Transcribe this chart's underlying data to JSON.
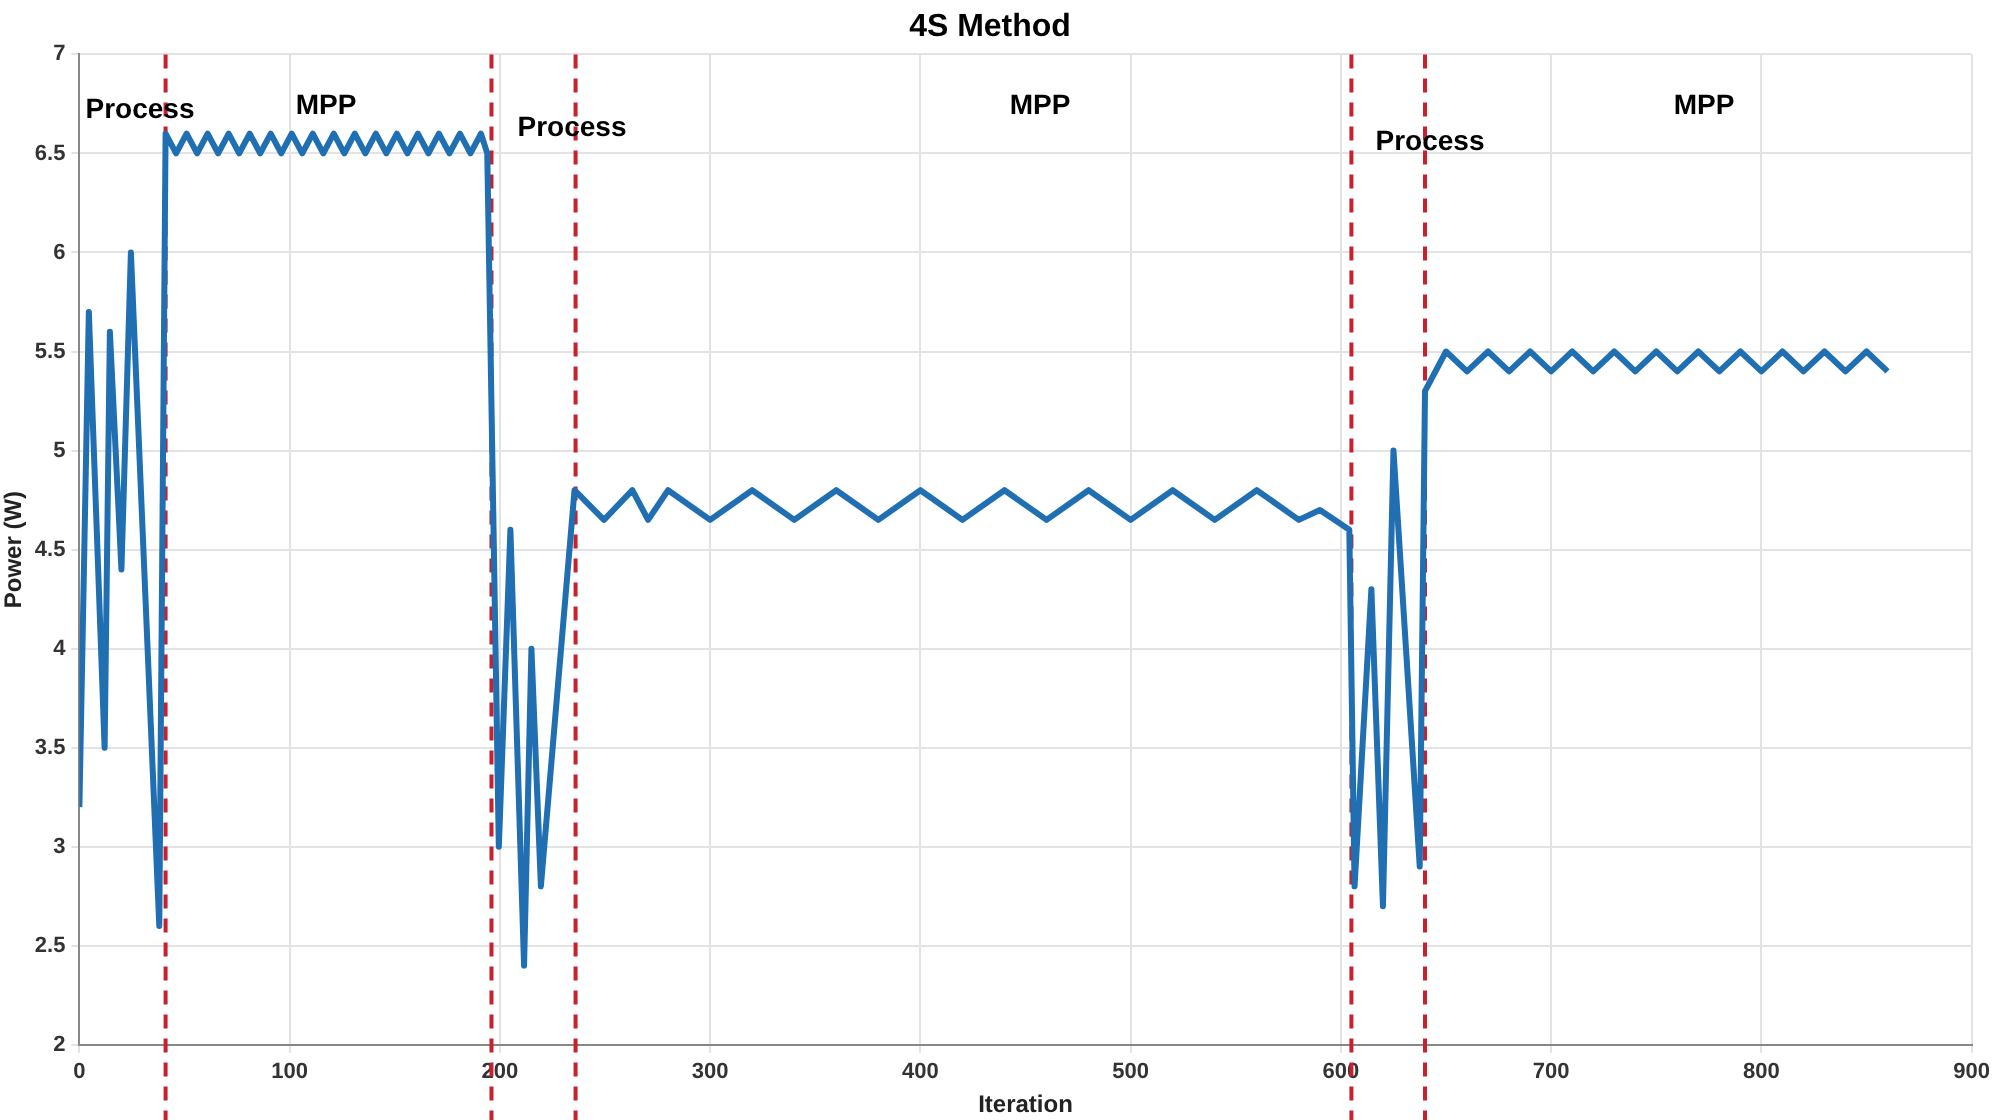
{
  "chart_data": {
    "type": "line",
    "title": "4S Method",
    "xlabel": "Iteration",
    "ylabel": "Power (W)",
    "x": [
      0,
      4.5,
      12,
      14.5,
      20,
      24.5,
      38,
      41,
      46,
      51,
      56,
      61,
      66,
      71,
      76,
      81,
      86,
      91,
      96,
      101,
      106,
      111,
      116,
      121,
      126,
      131,
      136,
      141,
      146,
      151,
      156,
      161,
      166,
      171,
      176,
      181,
      186,
      191,
      194,
      199.5,
      205,
      211.5,
      215,
      219.5,
      235.5,
      249.5,
      263,
      270.5,
      280,
      300,
      320,
      340,
      360,
      380,
      400,
      420,
      440,
      460,
      480,
      500,
      520,
      540,
      560,
      580,
      590,
      604,
      606.5,
      614.5,
      620,
      625,
      637.5,
      640,
      650,
      660,
      670,
      680,
      690,
      700,
      710,
      720,
      730,
      740,
      750,
      760,
      770,
      780,
      790,
      800,
      810,
      820,
      830,
      840,
      850,
      860
    ],
    "series": [
      {
        "color": "#1f6fb2",
        "values": [
          3.2,
          5.7,
          3.5,
          5.6,
          4.4,
          6.0,
          2.6,
          6.6,
          6.5,
          6.6,
          6.5,
          6.6,
          6.5,
          6.6,
          6.5,
          6.6,
          6.5,
          6.6,
          6.5,
          6.6,
          6.5,
          6.6,
          6.5,
          6.6,
          6.5,
          6.6,
          6.5,
          6.6,
          6.5,
          6.6,
          6.5,
          6.6,
          6.5,
          6.6,
          6.5,
          6.6,
          6.5,
          6.6,
          6.5,
          3.0,
          4.6,
          2.4,
          4.0,
          2.8,
          4.8,
          4.65,
          4.8,
          4.65,
          4.8,
          4.65,
          4.8,
          4.65,
          4.8,
          4.65,
          4.8,
          4.65,
          4.8,
          4.65,
          4.8,
          4.65,
          4.8,
          4.65,
          4.8,
          4.65,
          4.7,
          4.6,
          2.8,
          4.3,
          2.7,
          5.0,
          2.9,
          5.3,
          5.5,
          5.4,
          5.5,
          5.4,
          5.5,
          5.4,
          5.5,
          5.4,
          5.5,
          5.4,
          5.5,
          5.4,
          5.5,
          5.4,
          5.5,
          5.4,
          5.5,
          5.4,
          5.5,
          5.4,
          5.5,
          5.4
        ]
      }
    ],
    "xlim": [
      0,
      900
    ],
    "xticks": [
      0,
      100,
      200,
      300,
      400,
      500,
      600,
      700,
      800,
      900
    ],
    "ylim": [
      2,
      7
    ],
    "yticks": [
      2,
      2.5,
      3,
      3.5,
      4,
      4.5,
      5,
      5.5,
      6,
      6.5,
      7
    ],
    "grid": true,
    "legend": false,
    "marker": "none",
    "line_style": "solid",
    "ref_lines": [
      {
        "axis": "x",
        "value": 41,
        "color": "#c8202c",
        "line_style": "dashed"
      },
      {
        "axis": "x",
        "value": 196,
        "color": "#c8202c",
        "line_style": "dashed"
      },
      {
        "axis": "x",
        "value": 236,
        "color": "#c8202c",
        "line_style": "dashed"
      },
      {
        "axis": "x",
        "value": 605,
        "color": "#c8202c",
        "line_style": "dashed"
      },
      {
        "axis": "x",
        "value": 640,
        "color": "#c8202c",
        "line_style": "dashed"
      }
    ],
    "annotations": [
      "Process",
      "MPP",
      "Process",
      "MPP",
      "Process",
      "MPP"
    ]
  }
}
